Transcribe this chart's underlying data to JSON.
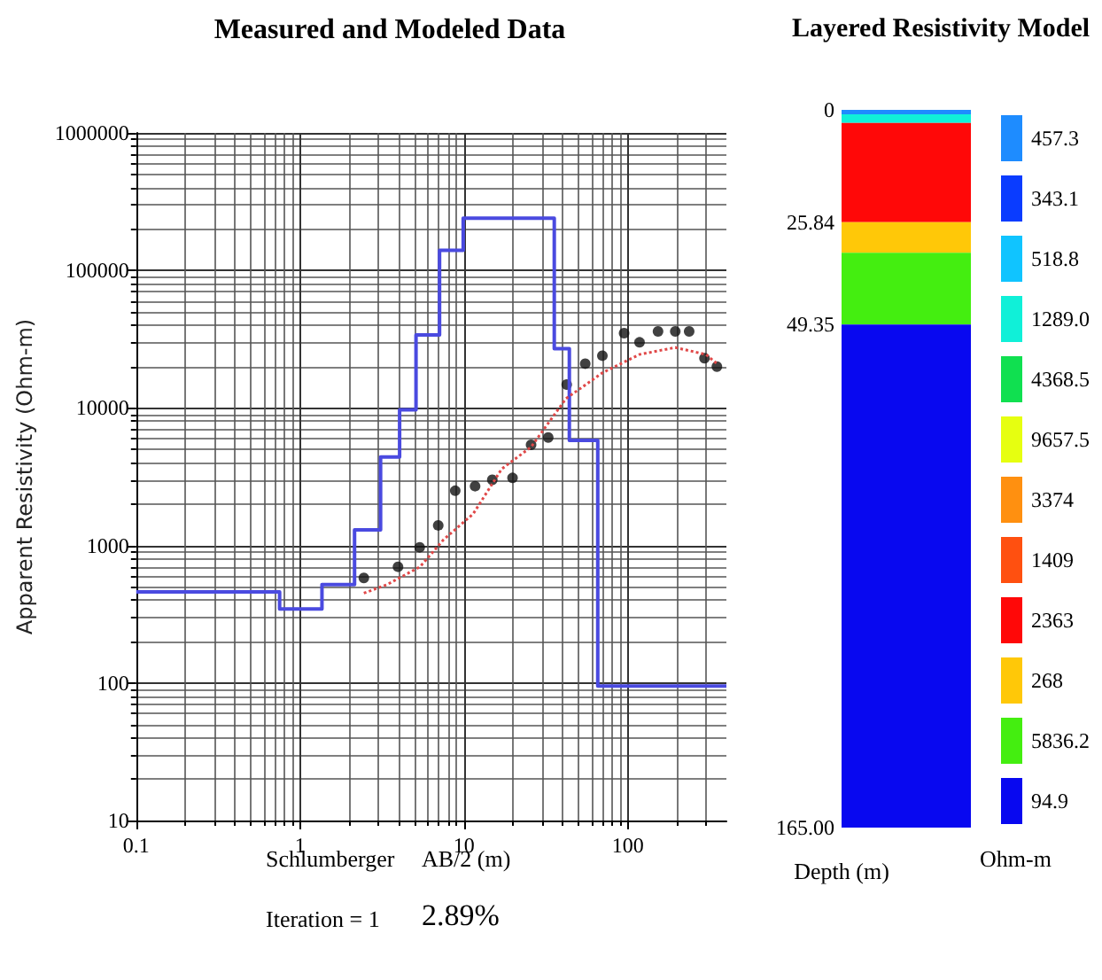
{
  "chart_data": [
    {
      "type": "line",
      "title": "Measured and Modeled Data",
      "xlabel": "AB/2 (m)",
      "ylabel": "Apparent Resistivity (Ohm-m)",
      "annotations": [
        "Schlumberger",
        "Iteration = 1",
        "2.89%"
      ],
      "log": "xy",
      "xlim": [
        0.1,
        400
      ],
      "ylim": [
        10,
        1000000
      ],
      "xticks": [
        0.1,
        1,
        10,
        100
      ],
      "yticks": [
        10,
        100,
        1000,
        10000,
        100000,
        1000000
      ],
      "grid": true,
      "legend": false,
      "series": [
        {
          "type": "step",
          "color": "#4a4ae0",
          "marker": "none",
          "line_style": "solid",
          "x": [
            0.1,
            0.75,
            1.36,
            2.15,
            3.1,
            4.05,
            5.1,
            7.1,
            9.9,
            35.6,
            44,
            65.6,
            400
          ],
          "values": [
            460,
            345,
            520,
            1300,
            4400,
            9700,
            34000,
            140000,
            240000,
            27000,
            5800,
            95,
            95
          ]
        },
        {
          "type": "scatter",
          "color": "#111111",
          "marker": "circle",
          "x": [
            2.45,
            3.96,
            5.37,
            6.97,
            8.85,
            11.7,
            14.9,
            19.8,
            25.7,
            32.7,
            42.4,
            55,
            70,
            95,
            118,
            153,
            195,
            237,
            294,
            350
          ],
          "values": [
            580,
            700,
            970,
            1400,
            2500,
            2700,
            3000,
            3100,
            5400,
            6100,
            14800,
            21000,
            24000,
            35000,
            30000,
            36000,
            36000,
            36000,
            23000,
            20000
          ]
        },
        {
          "type": "line",
          "color": "#e04848",
          "marker": "none",
          "line_style": "dotted",
          "x": [
            2.45,
            3.4,
            5.4,
            7.5,
            11.4,
            17,
            25.7,
            42,
            70,
            118,
            195,
            300,
            350
          ],
          "values": [
            450,
            520,
            700,
            1100,
            1700,
            3600,
            5200,
            11700,
            18000,
            24500,
            27500,
            24500,
            21000
          ]
        }
      ]
    },
    {
      "type": "bar",
      "title": "Layered Resistivity Model",
      "ylabel": "Depth (m)",
      "legend_title": "Ohm-m",
      "stacked": true,
      "legend": "right",
      "tick_labels": "y",
      "categories": [
        null
      ],
      "ylim": [
        165,
        0
      ],
      "yticks": [
        0,
        25.84,
        49.35,
        {
          "value": 165,
          "label": "165.00"
        }
      ],
      "series": [
        {
          "name": "457.3",
          "color": "#1e8cff",
          "values": [
            1
          ]
        },
        {
          "name": "343.1",
          "color": "#0a3cff",
          "values": [
            null
          ]
        },
        {
          "name": "518.8",
          "color": "#10c4ff",
          "values": [
            null
          ]
        },
        {
          "name": "1289.0",
          "color": "#10f0d8",
          "values": [
            2
          ]
        },
        {
          "name": "4368.5",
          "color": "#10e050",
          "values": [
            null
          ]
        },
        {
          "name": "9657.5",
          "color": "#e6ff10",
          "values": [
            null
          ]
        },
        {
          "name": "3374",
          "color": "#ff9010",
          "values": [
            null
          ]
        },
        {
          "name": "1409",
          "color": "#ff5010",
          "values": [
            null
          ]
        },
        {
          "name": "2363",
          "color": "#ff0808",
          "values": [
            22.84
          ]
        },
        {
          "name": "268",
          "color": "#ffc808",
          "values": [
            7
          ]
        },
        {
          "name": "5836.2",
          "color": "#44ee10",
          "values": [
            16.51
          ]
        },
        {
          "name": "94.9",
          "color": "#0808f0",
          "values": [
            115.65
          ]
        }
      ]
    }
  ]
}
